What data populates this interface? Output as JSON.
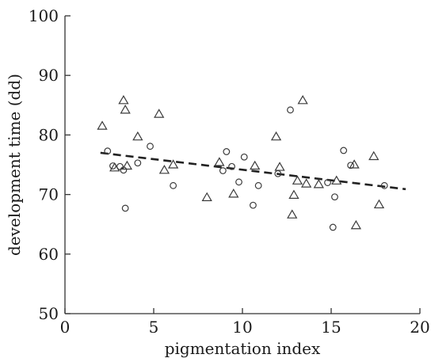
{
  "chart_data": {
    "type": "scatter",
    "xlabel": "pigmentation index",
    "ylabel": "development time (dd)",
    "xlim": [
      0,
      20
    ],
    "ylim": [
      50,
      100
    ],
    "x_ticks": [
      0,
      5,
      10,
      15,
      20
    ],
    "y_ticks": [
      50,
      60,
      70,
      80,
      90,
      100
    ],
    "grid": false,
    "series": [
      {
        "marker": "circle",
        "points": [
          [
            2.4,
            77.3
          ],
          [
            2.7,
            74.8
          ],
          [
            3.1,
            74.7
          ],
          [
            3.3,
            74.1
          ],
          [
            3.4,
            67.7
          ],
          [
            4.1,
            75.3
          ],
          [
            4.8,
            78.1
          ],
          [
            6.1,
            71.5
          ],
          [
            8.9,
            74.0
          ],
          [
            9.1,
            77.2
          ],
          [
            9.4,
            74.7
          ],
          [
            9.8,
            72.1
          ],
          [
            10.1,
            76.3
          ],
          [
            10.6,
            68.2
          ],
          [
            10.9,
            71.5
          ],
          [
            12.0,
            73.5
          ],
          [
            12.7,
            84.2
          ],
          [
            14.8,
            72.0
          ],
          [
            15.1,
            64.5
          ],
          [
            15.2,
            69.6
          ],
          [
            15.7,
            77.4
          ],
          [
            16.1,
            74.9
          ],
          [
            18.0,
            71.5
          ]
        ]
      },
      {
        "marker": "triangle",
        "points": [
          [
            2.1,
            81.5
          ],
          [
            2.8,
            74.5
          ],
          [
            3.3,
            85.8
          ],
          [
            3.4,
            84.2
          ],
          [
            3.5,
            74.8
          ],
          [
            4.1,
            79.7
          ],
          [
            5.3,
            83.5
          ],
          [
            5.6,
            74.1
          ],
          [
            6.1,
            75.0
          ],
          [
            8.0,
            69.5
          ],
          [
            8.7,
            75.4
          ],
          [
            9.5,
            70.1
          ],
          [
            10.7,
            74.8
          ],
          [
            11.9,
            79.7
          ],
          [
            12.1,
            74.6
          ],
          [
            12.8,
            66.6
          ],
          [
            12.9,
            69.9
          ],
          [
            13.1,
            72.3
          ],
          [
            13.4,
            85.8
          ],
          [
            13.6,
            71.8
          ],
          [
            14.3,
            71.7
          ],
          [
            15.3,
            72.3
          ],
          [
            16.3,
            75.0
          ],
          [
            16.4,
            64.8
          ],
          [
            17.4,
            76.4
          ],
          [
            17.7,
            68.3
          ]
        ]
      }
    ],
    "trendline": {
      "style": "dashed",
      "x": [
        2.0,
        19.2
      ],
      "y": [
        77.0,
        70.9
      ]
    }
  }
}
